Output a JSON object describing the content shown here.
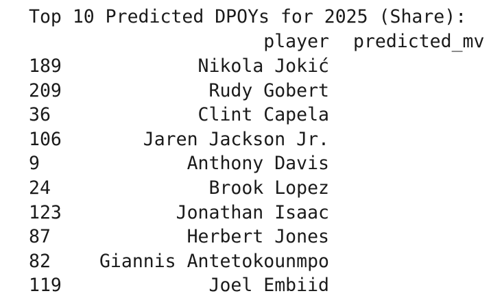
{
  "output": {
    "title": "Top 10 Predicted DPOYs for 2025 (Share):",
    "columns": [
      "player",
      "predicted_mv"
    ],
    "rows": [
      {
        "index": "189",
        "player": "Nikola Jokić"
      },
      {
        "index": "209",
        "player": "Rudy Gobert"
      },
      {
        "index": "36",
        "player": "Clint Capela"
      },
      {
        "index": "106",
        "player": "Jaren Jackson Jr."
      },
      {
        "index": "9",
        "player": "Anthony Davis"
      },
      {
        "index": "24",
        "player": "Brook Lopez"
      },
      {
        "index": "123",
        "player": "Jonathan Isaac"
      },
      {
        "index": "87",
        "player": "Herbert Jones"
      },
      {
        "index": "82",
        "player": "Giannis Antetokounmpo"
      },
      {
        "index": "119",
        "player": "Joel Embiid"
      }
    ]
  }
}
